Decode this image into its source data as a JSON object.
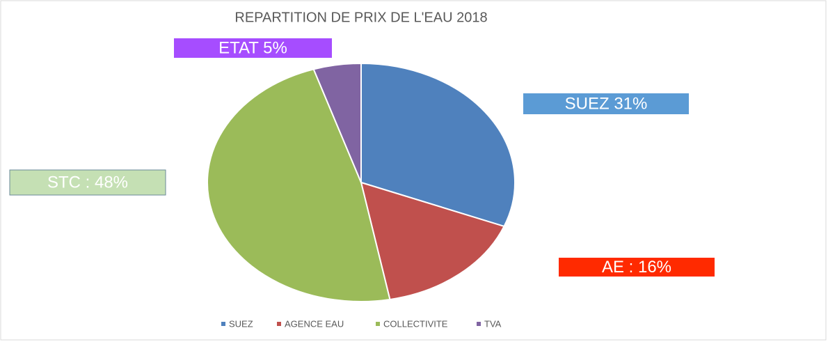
{
  "chart_data": {
    "type": "pie",
    "title": "REPARTITION DE PRIX DE L'EAU 2018",
    "categories": [
      "SUEZ",
      "AGENCE EAU",
      "COLLECTIVITE",
      "TVA"
    ],
    "values": [
      31,
      16,
      48,
      5
    ],
    "value_labels": [
      "SUEZ 31%",
      "AE : 16%",
      "STC : 48%",
      "ETAT 5%"
    ],
    "colors": [
      "#4f81bd",
      "#c0504d",
      "#9bbb59",
      "#8064a2"
    ],
    "label_colors": [
      "#5b9bd5",
      "#ff2a00",
      "#c5e0b4",
      "#a64dff"
    ],
    "legend": "bottom"
  }
}
